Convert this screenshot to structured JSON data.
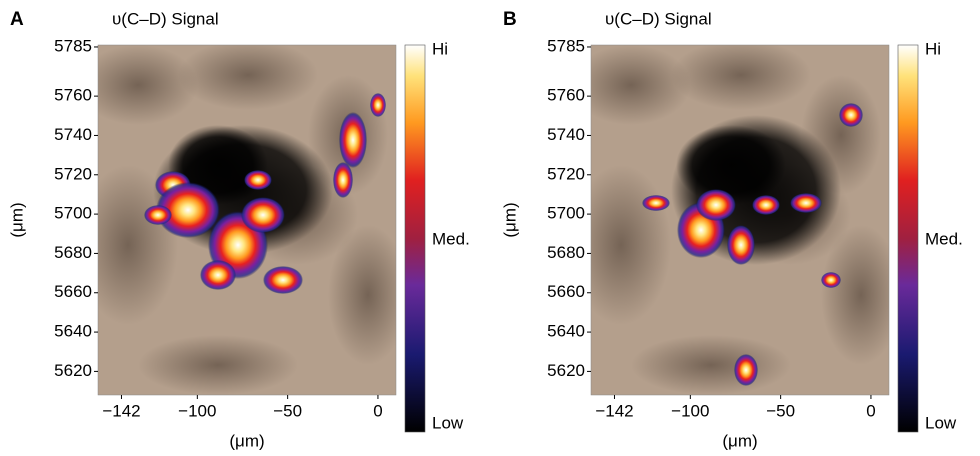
{
  "chart_data": [
    {
      "type": "heatmap",
      "panel_label": "A",
      "title": "υ(C–D) Signal",
      "xlabel": "(μm)",
      "ylabel": "(μm)",
      "xlim": [
        -155,
        10
      ],
      "ylim": [
        5608,
        5786
      ],
      "xticks": [
        {
          "value": -142,
          "label": "−142"
        },
        {
          "value": -100,
          "label": "−100"
        },
        {
          "value": -50,
          "label": "−50"
        },
        0
      ],
      "yticks": [
        5620,
        5640,
        5660,
        5680,
        5700,
        5720,
        5740,
        5760,
        5785
      ],
      "colorbar_labels": [
        "Hi",
        "Med.",
        "Low"
      ]
    },
    {
      "type": "heatmap",
      "panel_label": "B",
      "title": "υ(C–D) Signal",
      "xlabel": "(μm)",
      "ylabel": "(μm)",
      "xlim": [
        -155,
        10
      ],
      "ylim": [
        5608,
        5786
      ],
      "xticks": [
        {
          "value": -142,
          "label": "−142"
        },
        {
          "value": -100,
          "label": "−100"
        },
        {
          "value": -50,
          "label": "−50"
        },
        0
      ],
      "yticks": [
        5620,
        5640,
        5660,
        5680,
        5700,
        5720,
        5740,
        5760,
        5785
      ],
      "colorbar_labels": [
        "Hi",
        "Med.",
        "Low"
      ]
    }
  ]
}
